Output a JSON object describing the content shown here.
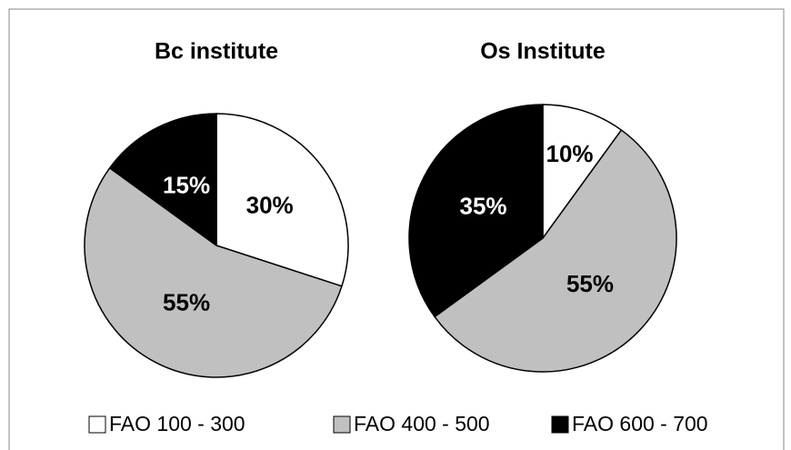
{
  "chart_data": [
    {
      "type": "pie",
      "title": "Bc institute",
      "values": [
        30,
        55,
        15
      ],
      "value_labels": [
        "30%",
        "55%",
        "15%"
      ]
    },
    {
      "type": "pie",
      "title": "Os Institute",
      "values": [
        10,
        55,
        35
      ],
      "value_labels": [
        "10%",
        "55%",
        "35%"
      ]
    }
  ],
  "legend": {
    "categories": [
      "FAO 100 - 300",
      "FAO 400 - 500",
      "FAO 600 - 700"
    ],
    "colors": [
      "#ffffff",
      "#c0c0c0",
      "#000000"
    ]
  }
}
